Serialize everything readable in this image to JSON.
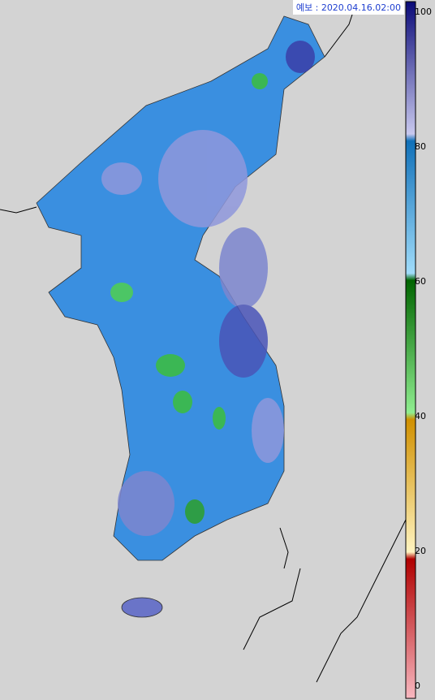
{
  "header": {
    "title": "예보 : 2020.04.16.02:00"
  },
  "legend": {
    "ticks": [
      100,
      80,
      60,
      40,
      20,
      0
    ]
  }
}
